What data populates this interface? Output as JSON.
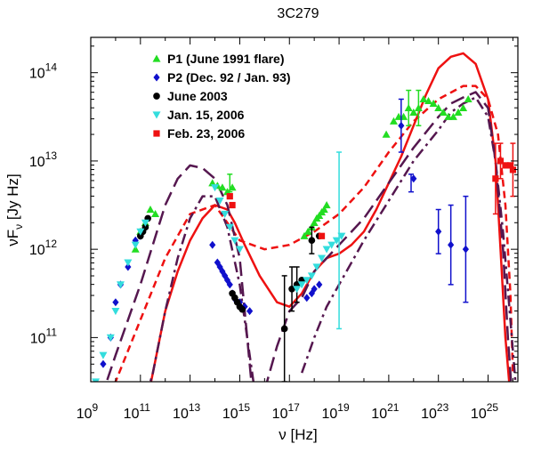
{
  "chart_data": {
    "type": "scatter",
    "title": "3C279",
    "xlabel": "ν [Hz]",
    "ylabel_main": "νF",
    "ylabel_sub": "ν",
    "ylabel_tail": " [Jy Hz]",
    "x_log": true,
    "y_log": true,
    "xlim_log10": [
      9,
      26.2
    ],
    "ylim_log10": [
      10.5,
      14.4
    ],
    "x_ticks": [
      {
        "mant": "10",
        "exp": "9"
      },
      {
        "mant": "10",
        "exp": "11"
      },
      {
        "mant": "10",
        "exp": "13"
      },
      {
        "mant": "10",
        "exp": "15"
      },
      {
        "mant": "10",
        "exp": "17"
      },
      {
        "mant": "10",
        "exp": "19"
      },
      {
        "mant": "10",
        "exp": "21"
      },
      {
        "mant": "10",
        "exp": "23"
      },
      {
        "mant": "10",
        "exp": "25"
      }
    ],
    "x_tick_values": [
      9,
      11,
      13,
      15,
      17,
      19,
      21,
      23,
      25
    ],
    "y_ticks": [
      {
        "mant": "10",
        "exp": "11"
      },
      {
        "mant": "10",
        "exp": "12"
      },
      {
        "mant": "10",
        "exp": "13"
      },
      {
        "mant": "10",
        "exp": "14"
      }
    ],
    "y_tick_values": [
      11,
      12,
      13,
      14
    ],
    "legend_position": "top-left",
    "series": [
      {
        "name": "P1 (June 1991 flare)",
        "marker": "triangle-up",
        "color": "#22dd22",
        "points": [
          [
            10.8,
            12.0
          ],
          [
            11.0,
            12.2
          ],
          [
            11.2,
            12.3
          ],
          [
            11.4,
            12.45
          ],
          [
            11.6,
            12.4
          ],
          [
            13.9,
            12.75
          ],
          [
            14.1,
            12.72
          ],
          [
            14.3,
            12.7
          ],
          [
            14.5,
            12.65
          ],
          [
            14.7,
            12.7
          ],
          [
            17.6,
            12.15
          ],
          [
            17.75,
            12.2
          ],
          [
            17.9,
            12.25
          ],
          [
            18.0,
            12.3
          ],
          [
            18.1,
            12.35
          ],
          [
            18.2,
            12.38
          ],
          [
            18.3,
            12.42
          ],
          [
            18.4,
            12.45
          ],
          [
            18.5,
            12.5
          ],
          [
            20.9,
            13.3
          ],
          [
            21.2,
            13.45
          ],
          [
            21.4,
            13.5
          ],
          [
            21.6,
            13.5
          ],
          [
            21.8,
            13.6
          ],
          [
            22.0,
            13.55
          ],
          [
            22.2,
            13.6
          ],
          [
            22.4,
            13.7
          ],
          [
            22.6,
            13.68
          ],
          [
            22.8,
            13.65
          ],
          [
            23.0,
            13.6
          ],
          [
            23.2,
            13.55
          ],
          [
            23.4,
            13.5
          ],
          [
            23.6,
            13.5
          ],
          [
            23.8,
            13.55
          ],
          [
            24.0,
            13.6
          ],
          [
            24.2,
            13.7
          ]
        ],
        "errors": [
          [
            22.2,
            13.6,
            0.2
          ],
          [
            21.8,
            13.6,
            0.2
          ],
          [
            14.6,
            12.75,
            0.1
          ]
        ]
      },
      {
        "name": "P2 (Dec. 92 / Jan. 93)",
        "marker": "diamond",
        "color": "#1010cc",
        "points": [
          [
            9.2,
            10.4
          ],
          [
            9.5,
            10.7
          ],
          [
            9.8,
            11.0
          ],
          [
            10.0,
            11.4
          ],
          [
            10.2,
            11.6
          ],
          [
            10.5,
            11.8
          ],
          [
            10.8,
            12.1
          ],
          [
            11.0,
            12.15
          ],
          [
            13.9,
            12.05
          ],
          [
            14.1,
            11.85
          ],
          [
            14.2,
            11.8
          ],
          [
            14.3,
            11.75
          ],
          [
            14.4,
            11.7
          ],
          [
            14.5,
            11.65
          ],
          [
            14.6,
            11.6
          ],
          [
            14.7,
            11.5
          ],
          [
            14.85,
            11.42
          ],
          [
            15.0,
            11.4
          ],
          [
            15.2,
            11.35
          ],
          [
            15.4,
            11.3
          ],
          [
            17.7,
            11.45
          ],
          [
            17.9,
            11.5
          ],
          [
            18.0,
            11.55
          ],
          [
            18.2,
            11.6
          ],
          [
            21.5,
            13.4
          ],
          [
            22.0,
            12.8
          ],
          [
            23.0,
            12.2
          ],
          [
            23.5,
            12.05
          ],
          [
            24.1,
            12.0
          ]
        ],
        "errors": [
          [
            21.5,
            13.4,
            0.3
          ],
          [
            23.0,
            12.2,
            0.25
          ],
          [
            23.5,
            12.05,
            0.45
          ],
          [
            24.1,
            12.0,
            0.6
          ],
          [
            21.9,
            12.75,
            0.1
          ]
        ]
      },
      {
        "name": "June 2003",
        "marker": "circle",
        "color": "#000000",
        "points": [
          [
            11.0,
            12.15
          ],
          [
            11.1,
            12.2
          ],
          [
            11.2,
            12.25
          ],
          [
            11.3,
            12.35
          ],
          [
            14.7,
            11.5
          ],
          [
            14.8,
            11.45
          ],
          [
            14.9,
            11.4
          ],
          [
            15.0,
            11.35
          ],
          [
            15.1,
            11.32
          ],
          [
            16.8,
            11.1
          ],
          [
            17.1,
            11.55
          ],
          [
            17.3,
            11.6
          ],
          [
            17.5,
            11.65
          ],
          [
            17.9,
            12.1
          ],
          [
            18.2,
            12.15
          ]
        ],
        "errors": [
          [
            16.8,
            11.1,
            0.6
          ],
          [
            17.1,
            11.55,
            0.25
          ],
          [
            17.3,
            11.6,
            0.2
          ],
          [
            17.9,
            12.1,
            0.15
          ]
        ]
      },
      {
        "name": "Jan. 15, 2006",
        "marker": "triangle-down",
        "color": "#33dddd",
        "points": [
          [
            9.2,
            10.5
          ],
          [
            9.5,
            10.8
          ],
          [
            9.8,
            11.0
          ],
          [
            10.0,
            11.3
          ],
          [
            10.2,
            11.6
          ],
          [
            10.5,
            11.85
          ],
          [
            10.8,
            12.05
          ],
          [
            11.0,
            12.2
          ],
          [
            11.2,
            12.3
          ],
          [
            14.0,
            12.7
          ],
          [
            14.2,
            12.55
          ],
          [
            14.4,
            12.4
          ],
          [
            14.6,
            12.25
          ],
          [
            14.8,
            12.1
          ],
          [
            15.0,
            12.0
          ],
          [
            17.3,
            11.55
          ],
          [
            17.5,
            11.6
          ],
          [
            17.7,
            11.65
          ],
          [
            17.9,
            11.7
          ],
          [
            18.1,
            11.8
          ],
          [
            18.3,
            11.9
          ],
          [
            18.5,
            12.0
          ],
          [
            18.7,
            12.05
          ],
          [
            18.9,
            12.1
          ],
          [
            19.1,
            12.15
          ]
        ],
        "errors": [
          [
            19.0,
            12.1,
            1.0
          ]
        ]
      },
      {
        "name": "Feb. 23, 2006",
        "marker": "square",
        "color": "#ee1111",
        "points": [
          [
            14.6,
            12.6
          ],
          [
            14.7,
            12.5
          ],
          [
            18.3,
            12.15
          ],
          [
            25.3,
            12.8
          ],
          [
            25.5,
            13.0
          ],
          [
            25.7,
            12.95
          ],
          [
            25.9,
            12.95
          ],
          [
            26.0,
            12.9
          ]
        ],
        "errors": [
          [
            25.3,
            12.8,
            0.4
          ],
          [
            25.5,
            13.0,
            0.2
          ],
          [
            26.0,
            12.9,
            0.3
          ]
        ]
      }
    ],
    "model_curves": [
      {
        "style": "solid",
        "color": "#ee1111",
        "points": [
          [
            11.0,
            9.9
          ],
          [
            11.5,
            10.6
          ],
          [
            12.0,
            11.3
          ],
          [
            12.5,
            11.75
          ],
          [
            13.0,
            12.1
          ],
          [
            13.5,
            12.35
          ],
          [
            14.0,
            12.5
          ],
          [
            14.5,
            12.45
          ],
          [
            14.8,
            12.3
          ],
          [
            15.2,
            12.05
          ],
          [
            15.8,
            11.7
          ],
          [
            16.5,
            11.4
          ],
          [
            17.0,
            11.35
          ],
          [
            17.5,
            11.5
          ],
          [
            18.0,
            11.75
          ],
          [
            18.5,
            11.9
          ],
          [
            19.0,
            11.95
          ],
          [
            19.5,
            12.05
          ],
          [
            20.0,
            12.2
          ],
          [
            20.5,
            12.45
          ],
          [
            21.0,
            12.75
          ],
          [
            21.5,
            13.05
          ],
          [
            22.0,
            13.4
          ],
          [
            22.5,
            13.75
          ],
          [
            23.0,
            14.05
          ],
          [
            23.5,
            14.18
          ],
          [
            24.0,
            14.22
          ],
          [
            24.5,
            14.1
          ],
          [
            25.0,
            13.7
          ],
          [
            25.3,
            13.0
          ],
          [
            25.5,
            12.0
          ],
          [
            25.7,
            11.0
          ],
          [
            25.85,
            10.5
          ]
        ]
      },
      {
        "style": "dashed",
        "color": "#ee1111",
        "points": [
          [
            9.5,
            10.1
          ],
          [
            10.0,
            10.5
          ],
          [
            11.0,
            11.2
          ],
          [
            12.0,
            11.9
          ],
          [
            13.0,
            12.4
          ],
          [
            14.0,
            12.5
          ],
          [
            14.5,
            12.3
          ],
          [
            15.0,
            12.1
          ],
          [
            16.0,
            12.0
          ],
          [
            17.0,
            12.05
          ],
          [
            18.0,
            12.2
          ],
          [
            19.0,
            12.4
          ],
          [
            20.0,
            12.7
          ],
          [
            21.0,
            13.1
          ],
          [
            22.0,
            13.45
          ],
          [
            23.0,
            13.7
          ],
          [
            24.0,
            13.85
          ],
          [
            24.5,
            13.85
          ],
          [
            25.0,
            13.7
          ],
          [
            25.4,
            13.3
          ],
          [
            25.7,
            12.5
          ],
          [
            25.9,
            11.5
          ],
          [
            26.0,
            10.6
          ]
        ]
      },
      {
        "style": "long-dashed",
        "color": "#55174f",
        "points": [
          [
            9.4,
            10.3
          ],
          [
            10.0,
            10.8
          ],
          [
            11.0,
            11.6
          ],
          [
            12.0,
            12.5
          ],
          [
            12.5,
            12.8
          ],
          [
            13.0,
            12.95
          ],
          [
            13.5,
            12.92
          ],
          [
            14.0,
            12.8
          ],
          [
            14.5,
            12.5
          ],
          [
            15.0,
            11.9
          ],
          [
            15.3,
            11.0
          ],
          [
            15.5,
            10.4
          ],
          null,
          [
            16.0,
            10.4
          ],
          [
            16.5,
            10.9
          ],
          [
            17.0,
            11.3
          ],
          [
            17.5,
            11.45
          ],
          [
            18.0,
            11.75
          ],
          [
            18.5,
            11.9
          ],
          [
            19.0,
            12.05
          ],
          [
            20.0,
            12.35
          ],
          [
            21.0,
            12.75
          ],
          [
            22.0,
            13.15
          ],
          [
            23.0,
            13.5
          ],
          [
            23.5,
            13.65
          ],
          [
            24.0,
            13.72
          ],
          [
            24.5,
            13.78
          ],
          [
            25.0,
            13.6
          ],
          [
            25.3,
            13.0
          ],
          [
            25.6,
            12.0
          ],
          [
            25.8,
            11.0
          ],
          [
            25.95,
            10.4
          ]
        ]
      },
      {
        "style": "dash-dot",
        "color": "#55174f",
        "points": [
          [
            11.0,
            10.1
          ],
          [
            11.5,
            10.6
          ],
          [
            12.0,
            11.3
          ],
          [
            12.5,
            11.9
          ],
          [
            13.0,
            12.35
          ],
          [
            13.5,
            12.6
          ],
          [
            14.0,
            12.6
          ],
          [
            14.5,
            12.25
          ],
          [
            15.0,
            11.6
          ],
          [
            15.3,
            11.0
          ],
          [
            15.6,
            10.4
          ],
          null,
          [
            17.5,
            10.6
          ],
          [
            18.0,
            11.0
          ],
          [
            18.5,
            11.35
          ],
          [
            19.0,
            11.6
          ],
          [
            20.0,
            12.1
          ],
          [
            21.0,
            12.55
          ],
          [
            22.0,
            13.0
          ],
          [
            23.0,
            13.35
          ],
          [
            23.5,
            13.55
          ],
          [
            24.0,
            13.65
          ],
          [
            24.5,
            13.72
          ],
          [
            25.0,
            13.5
          ],
          [
            25.3,
            13.0
          ],
          [
            25.6,
            12.2
          ],
          [
            25.9,
            11.2
          ],
          [
            26.1,
            10.5
          ]
        ]
      }
    ]
  }
}
